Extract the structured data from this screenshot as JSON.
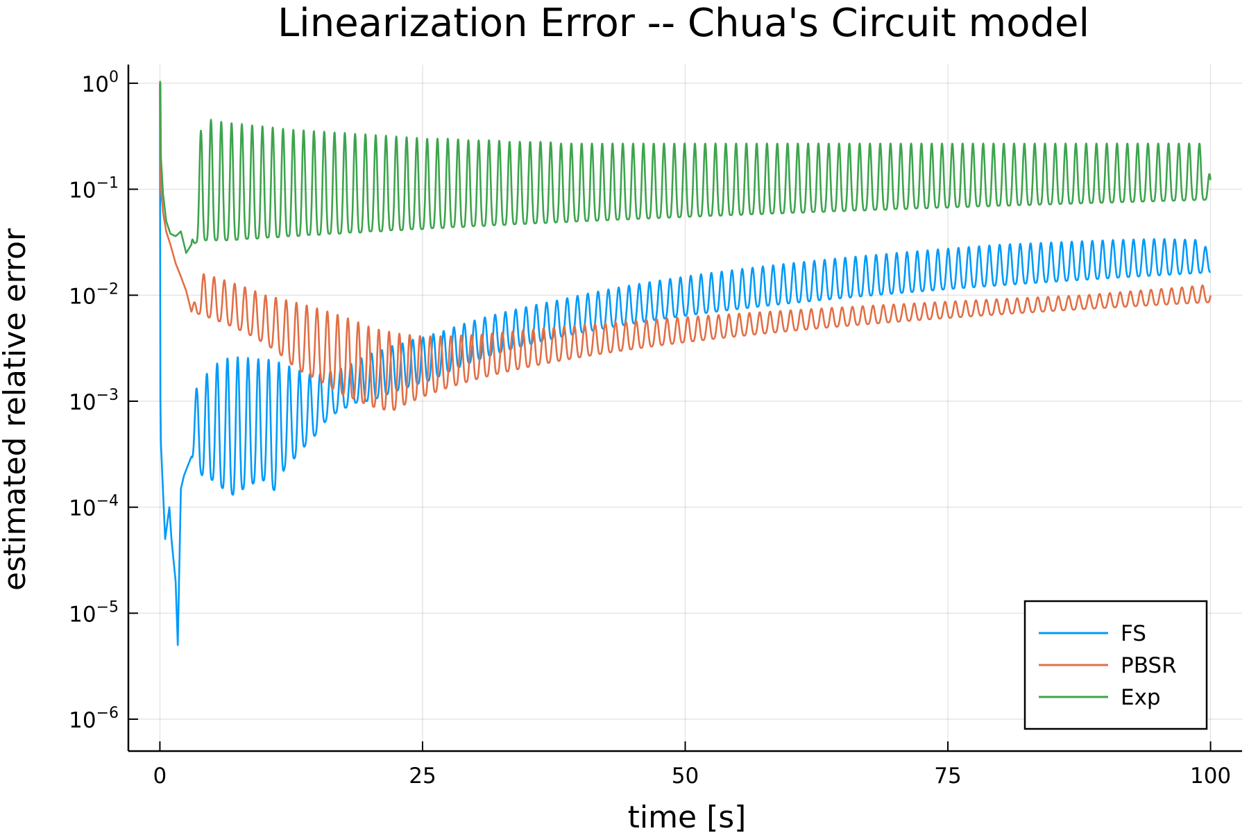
{
  "chart_data": {
    "type": "line",
    "title": "Linearization Error -- Chua's Circuit model",
    "xlabel": "time [s]",
    "ylabel": "estimated relative error",
    "xlim": [
      -3,
      103
    ],
    "ylim": [
      5e-07,
      1.5
    ],
    "yscale": "log",
    "x_ticks": [
      {
        "value": 0,
        "label": "0"
      },
      {
        "value": 25,
        "label": "25"
      },
      {
        "value": 50,
        "label": "50"
      },
      {
        "value": 75,
        "label": "75"
      },
      {
        "value": 100,
        "label": "100"
      }
    ],
    "y_ticks": [
      {
        "value": 1,
        "base": "10",
        "exp": "0"
      },
      {
        "value": 0.1,
        "base": "10",
        "exp": "−1"
      },
      {
        "value": 0.01,
        "base": "10",
        "exp": "−2"
      },
      {
        "value": 0.001,
        "base": "10",
        "exp": "−3"
      },
      {
        "value": 0.0001,
        "base": "10",
        "exp": "−4"
      },
      {
        "value": 1e-05,
        "base": "10",
        "exp": "−5"
      },
      {
        "value": 1e-06,
        "base": "10",
        "exp": "−6"
      }
    ],
    "grid": true,
    "legend_position": "bottom-right",
    "series": [
      {
        "name": "FS",
        "color": "#009AFA",
        "x": [
          0,
          0.05,
          0.1,
          0.5,
          0.9,
          1.1,
          1.5,
          1.7,
          2.0,
          2.3,
          3,
          4,
          5,
          6,
          7,
          8,
          9,
          10,
          11,
          12,
          13,
          14,
          15,
          16,
          17,
          18,
          19,
          20,
          21,
          22,
          23,
          24,
          25,
          26,
          27,
          28,
          29,
          30,
          31,
          32,
          33,
          34,
          35,
          36,
          37,
          38,
          39,
          40,
          41,
          42,
          43,
          44,
          45,
          46,
          47,
          48,
          49,
          50,
          51,
          52,
          53,
          54,
          55,
          56,
          57,
          58,
          59,
          60,
          61,
          62,
          63,
          64,
          65,
          66,
          67,
          68,
          69,
          70,
          71,
          72,
          73,
          74,
          75,
          76,
          77,
          78,
          79,
          80,
          81,
          82,
          83,
          84,
          85,
          86,
          87,
          88,
          89,
          90,
          91,
          92,
          93,
          94,
          95,
          96,
          97,
          98,
          99,
          100
        ],
        "low": [
          1.0,
          0.001,
          0.0004,
          5e-05,
          0.0001,
          5e-05,
          2e-05,
          5e-06,
          0.00015,
          0.0002,
          0.0003,
          0.0002,
          0.00018,
          0.00015,
          0.00013,
          0.00015,
          0.00017,
          0.00018,
          0.00014,
          0.00025,
          0.0003,
          0.0004,
          0.0005,
          0.0007,
          0.0008,
          0.0009,
          0.001,
          0.001,
          0.0011,
          0.0012,
          0.0013,
          0.0014,
          0.0015,
          0.0016,
          0.0018,
          0.002,
          0.0022,
          0.0024,
          0.0026,
          0.0028,
          0.003,
          0.0032,
          0.0034,
          0.0036,
          0.0038,
          0.004,
          0.0042,
          0.0044,
          0.0046,
          0.0048,
          0.005,
          0.0052,
          0.0054,
          0.0056,
          0.0058,
          0.006,
          0.0062,
          0.0064,
          0.0066,
          0.0068,
          0.007,
          0.0072,
          0.0074,
          0.0076,
          0.0078,
          0.008,
          0.0082,
          0.0084,
          0.0086,
          0.0088,
          0.009,
          0.0092,
          0.0094,
          0.0096,
          0.0098,
          0.01,
          0.0102,
          0.0104,
          0.0106,
          0.0108,
          0.011,
          0.0112,
          0.0114,
          0.0116,
          0.0118,
          0.012,
          0.0122,
          0.0124,
          0.0126,
          0.0128,
          0.013,
          0.0132,
          0.0134,
          0.0136,
          0.0138,
          0.014,
          0.0142,
          0.0144,
          0.0146,
          0.0148,
          0.015,
          0.0152,
          0.0154,
          0.0156,
          0.0158,
          0.016,
          0.0162,
          0.0165
        ],
        "high": [
          1.0,
          0.001,
          0.0004,
          5e-05,
          0.0001,
          5e-05,
          2e-05,
          5e-06,
          0.00015,
          0.0002,
          0.0011,
          0.0016,
          0.0021,
          0.0025,
          0.0026,
          0.0026,
          0.0025,
          0.0025,
          0.0024,
          0.0022,
          0.002,
          0.0018,
          0.0018,
          0.0019,
          0.002,
          0.0022,
          0.0025,
          0.0028,
          0.003,
          0.0033,
          0.0035,
          0.0038,
          0.004,
          0.0043,
          0.0046,
          0.005,
          0.0054,
          0.0058,
          0.0062,
          0.0066,
          0.007,
          0.0074,
          0.0078,
          0.0082,
          0.0086,
          0.009,
          0.0095,
          0.01,
          0.0105,
          0.011,
          0.0115,
          0.012,
          0.0125,
          0.013,
          0.0135,
          0.014,
          0.0145,
          0.015,
          0.0155,
          0.016,
          0.0165,
          0.017,
          0.0175,
          0.018,
          0.0185,
          0.019,
          0.0195,
          0.02,
          0.0205,
          0.021,
          0.0215,
          0.022,
          0.0225,
          0.023,
          0.0235,
          0.024,
          0.0245,
          0.025,
          0.0255,
          0.026,
          0.0265,
          0.027,
          0.0275,
          0.028,
          0.0285,
          0.029,
          0.0295,
          0.03,
          0.0303,
          0.0306,
          0.0309,
          0.0312,
          0.0315,
          0.0318,
          0.0321,
          0.0324,
          0.0327,
          0.033,
          0.0332,
          0.0334,
          0.0336,
          0.0338,
          0.034,
          0.0338,
          0.0336,
          0.0334,
          0.0332,
          0.025
        ]
      },
      {
        "name": "PBSR",
        "color": "#E26F46",
        "x": [
          0,
          0.1,
          0.3,
          0.6,
          1.0,
          1.5,
          2.0,
          2.5,
          3.0,
          4,
          5,
          6,
          7,
          8,
          9,
          10,
          11,
          12,
          13,
          14,
          15,
          16,
          17,
          18,
          19,
          20,
          21,
          22,
          23,
          24,
          25,
          26,
          27,
          28,
          29,
          30,
          31,
          32,
          33,
          34,
          35,
          36,
          37,
          38,
          39,
          40,
          41,
          42,
          43,
          44,
          45,
          46,
          47,
          48,
          49,
          50,
          51,
          52,
          53,
          54,
          55,
          56,
          57,
          58,
          59,
          60,
          61,
          62,
          63,
          64,
          65,
          66,
          67,
          68,
          69,
          70,
          71,
          72,
          73,
          74,
          75,
          76,
          77,
          78,
          79,
          80,
          81,
          82,
          83,
          84,
          85,
          86,
          87,
          88,
          89,
          90,
          91,
          92,
          93,
          94,
          95,
          96,
          97,
          98,
          99,
          100
        ],
        "low": [
          1.0,
          0.1,
          0.06,
          0.04,
          0.03,
          0.02,
          0.015,
          0.011,
          0.007,
          0.0065,
          0.006,
          0.0055,
          0.005,
          0.0045,
          0.004,
          0.0035,
          0.003,
          0.0025,
          0.002,
          0.0018,
          0.0016,
          0.0014,
          0.0012,
          0.0011,
          0.001,
          0.0009,
          0.00085,
          0.0008,
          0.0009,
          0.001,
          0.0011,
          0.0012,
          0.0013,
          0.0014,
          0.0015,
          0.0016,
          0.0017,
          0.0018,
          0.0019,
          0.002,
          0.0021,
          0.0022,
          0.0023,
          0.0024,
          0.0025,
          0.0026,
          0.0027,
          0.0028,
          0.0029,
          0.003,
          0.0031,
          0.0032,
          0.0033,
          0.0034,
          0.0035,
          0.0036,
          0.0037,
          0.0038,
          0.0039,
          0.004,
          0.0041,
          0.0042,
          0.0043,
          0.0044,
          0.0045,
          0.0046,
          0.0047,
          0.0048,
          0.0049,
          0.005,
          0.0051,
          0.0052,
          0.0053,
          0.0054,
          0.0055,
          0.0056,
          0.0057,
          0.0058,
          0.0059,
          0.006,
          0.0061,
          0.0062,
          0.0063,
          0.0064,
          0.0065,
          0.0066,
          0.0067,
          0.0068,
          0.0069,
          0.007,
          0.0071,
          0.0072,
          0.0073,
          0.0074,
          0.0075,
          0.0076,
          0.0077,
          0.0078,
          0.0079,
          0.008,
          0.0081,
          0.0082,
          0.0083,
          0.0084,
          0.0085,
          0.0086
        ],
        "high": [
          1.0,
          0.1,
          0.06,
          0.04,
          0.03,
          0.02,
          0.015,
          0.011,
          0.007,
          0.016,
          0.015,
          0.014,
          0.013,
          0.012,
          0.011,
          0.01,
          0.0095,
          0.009,
          0.0085,
          0.008,
          0.0075,
          0.007,
          0.0065,
          0.006,
          0.0055,
          0.005,
          0.0047,
          0.0045,
          0.0043,
          0.0042,
          0.0041,
          0.0041,
          0.0041,
          0.0041,
          0.0042,
          0.0042,
          0.0043,
          0.0044,
          0.0045,
          0.0046,
          0.0047,
          0.0048,
          0.0049,
          0.005,
          0.0051,
          0.0052,
          0.0053,
          0.0054,
          0.0055,
          0.0056,
          0.0057,
          0.0058,
          0.0059,
          0.006,
          0.0061,
          0.0062,
          0.0063,
          0.0064,
          0.0065,
          0.0066,
          0.0067,
          0.0068,
          0.0069,
          0.007,
          0.0071,
          0.0072,
          0.0073,
          0.0074,
          0.0075,
          0.0076,
          0.0077,
          0.0078,
          0.0079,
          0.008,
          0.0081,
          0.0082,
          0.0083,
          0.0084,
          0.0085,
          0.0086,
          0.0087,
          0.0088,
          0.0089,
          0.009,
          0.0091,
          0.0092,
          0.0093,
          0.0094,
          0.0095,
          0.0096,
          0.0097,
          0.0098,
          0.0099,
          0.01,
          0.0102,
          0.0104,
          0.0106,
          0.0108,
          0.011,
          0.0112,
          0.0114,
          0.0116,
          0.0118,
          0.012,
          0.0125,
          0.012
        ]
      },
      {
        "name": "Exp",
        "color": "#3DA44D",
        "x": [
          0,
          0.05,
          0.1,
          0.3,
          0.6,
          1.0,
          1.5,
          2.0,
          2.5,
          3.0,
          4,
          5,
          6,
          7,
          8,
          9,
          10,
          11,
          12,
          13,
          14,
          15,
          16,
          17,
          18,
          19,
          20,
          21,
          22,
          23,
          24,
          25,
          26,
          27,
          28,
          29,
          30,
          31,
          32,
          33,
          34,
          35,
          36,
          37,
          38,
          39,
          40,
          41,
          42,
          43,
          44,
          45,
          46,
          47,
          48,
          49,
          50,
          51,
          52,
          53,
          54,
          55,
          56,
          57,
          58,
          59,
          60,
          61,
          62,
          63,
          64,
          65,
          66,
          67,
          68,
          69,
          70,
          71,
          72,
          73,
          74,
          75,
          76,
          77,
          78,
          79,
          80,
          81,
          82,
          83,
          84,
          85,
          86,
          87,
          88,
          89,
          90,
          91,
          92,
          93,
          94,
          95,
          96,
          97,
          98,
          99,
          100
        ],
        "low": [
          1.05,
          1.0,
          0.2,
          0.09,
          0.05,
          0.038,
          0.036,
          0.04,
          0.025,
          0.03,
          0.033,
          0.033,
          0.033,
          0.033,
          0.034,
          0.034,
          0.035,
          0.035,
          0.036,
          0.036,
          0.037,
          0.037,
          0.038,
          0.038,
          0.039,
          0.039,
          0.04,
          0.04,
          0.041,
          0.041,
          0.042,
          0.042,
          0.043,
          0.043,
          0.044,
          0.044,
          0.045,
          0.045,
          0.046,
          0.046,
          0.047,
          0.047,
          0.048,
          0.048,
          0.049,
          0.049,
          0.05,
          0.05,
          0.051,
          0.051,
          0.052,
          0.052,
          0.053,
          0.053,
          0.054,
          0.054,
          0.055,
          0.055,
          0.056,
          0.056,
          0.057,
          0.057,
          0.058,
          0.058,
          0.059,
          0.059,
          0.06,
          0.06,
          0.061,
          0.061,
          0.062,
          0.062,
          0.063,
          0.063,
          0.064,
          0.064,
          0.065,
          0.065,
          0.066,
          0.066,
          0.067,
          0.067,
          0.068,
          0.068,
          0.069,
          0.069,
          0.07,
          0.07,
          0.071,
          0.071,
          0.072,
          0.072,
          0.073,
          0.073,
          0.074,
          0.074,
          0.075,
          0.075,
          0.076,
          0.076,
          0.077,
          0.077,
          0.078,
          0.078,
          0.079,
          0.079,
          0.08
        ],
        "high": [
          1.05,
          1.0,
          0.2,
          0.09,
          0.05,
          0.038,
          0.036,
          0.04,
          0.025,
          0.03,
          0.48,
          0.45,
          0.43,
          0.42,
          0.41,
          0.4,
          0.39,
          0.38,
          0.37,
          0.36,
          0.36,
          0.35,
          0.35,
          0.34,
          0.34,
          0.33,
          0.33,
          0.32,
          0.32,
          0.31,
          0.31,
          0.3,
          0.3,
          0.3,
          0.3,
          0.29,
          0.29,
          0.29,
          0.29,
          0.28,
          0.28,
          0.28,
          0.28,
          0.28,
          0.27,
          0.27,
          0.27,
          0.27,
          0.27,
          0.27,
          0.27,
          0.27,
          0.27,
          0.27,
          0.27,
          0.27,
          0.27,
          0.27,
          0.27,
          0.27,
          0.27,
          0.27,
          0.27,
          0.27,
          0.27,
          0.27,
          0.27,
          0.27,
          0.27,
          0.27,
          0.27,
          0.27,
          0.27,
          0.27,
          0.27,
          0.27,
          0.27,
          0.27,
          0.27,
          0.27,
          0.27,
          0.27,
          0.27,
          0.27,
          0.27,
          0.27,
          0.27,
          0.27,
          0.27,
          0.27,
          0.27,
          0.27,
          0.27,
          0.27,
          0.27,
          0.27,
          0.27,
          0.27,
          0.27,
          0.27,
          0.27,
          0.27,
          0.27,
          0.27,
          0.27,
          0.27,
          0.13
        ]
      }
    ]
  }
}
